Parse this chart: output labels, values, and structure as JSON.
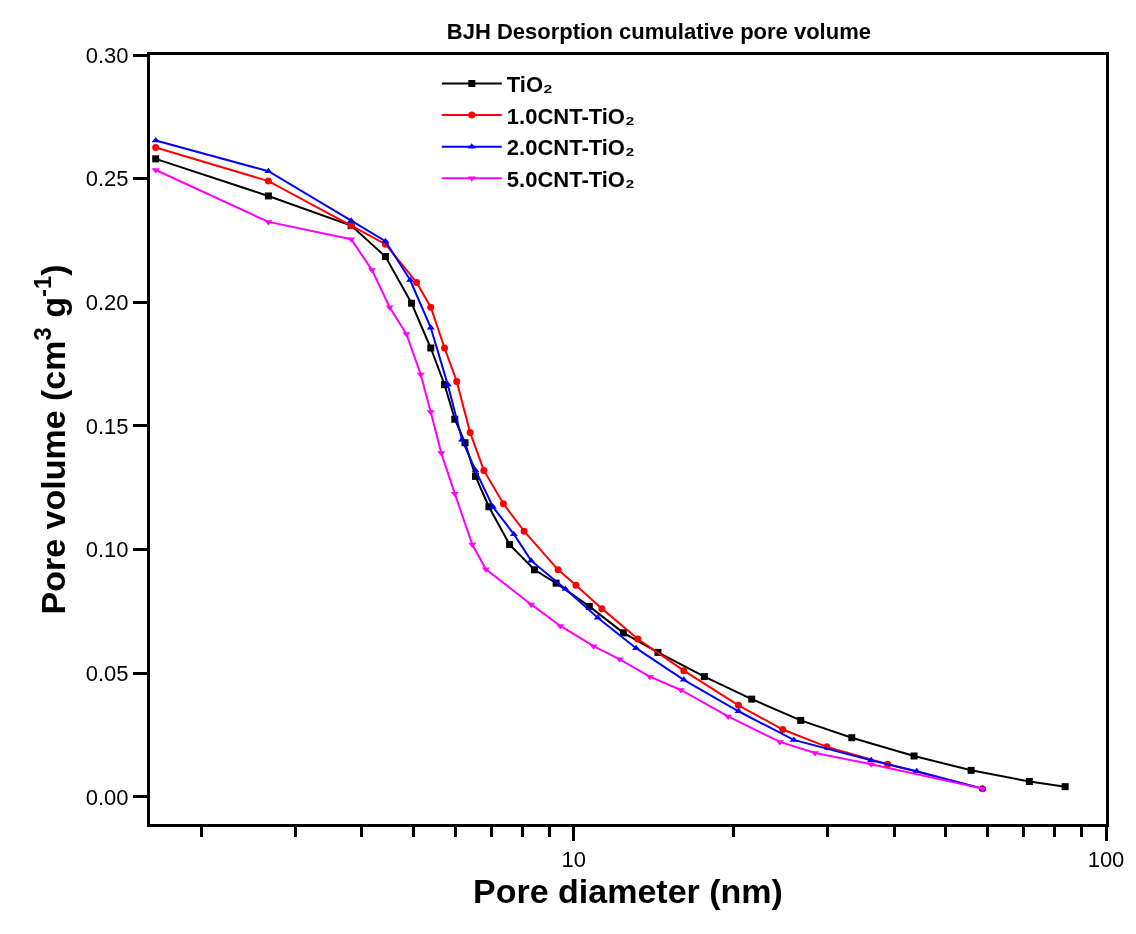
{
  "chart_data": {
    "type": "line",
    "title": "BJH Desorption cumulative pore volume",
    "xlabel": "Pore diameter (nm)",
    "ylabel": "Pore volume (cm$^{3}$ g$^{-1}$)",
    "log": "x",
    "legend": "top",
    "line_style": "solid",
    "xlim": [
      1.6,
      100
    ],
    "xticks": [
      {
        "value": 2,
        "label": null
      },
      {
        "value": 3,
        "label": null
      },
      {
        "value": 4,
        "label": null
      },
      {
        "value": 5,
        "label": null
      },
      {
        "value": 6,
        "label": null
      },
      {
        "value": 7,
        "label": null
      },
      {
        "value": 8,
        "label": null
      },
      {
        "value": 9,
        "label": null
      },
      10,
      {
        "value": 20,
        "label": null
      },
      {
        "value": 30,
        "label": null
      },
      {
        "value": 40,
        "label": null
      },
      {
        "value": 50,
        "label": null
      },
      {
        "value": 60,
        "label": null
      },
      {
        "value": 70,
        "label": null
      },
      {
        "value": 80,
        "label": null
      },
      {
        "value": 90,
        "label": null
      },
      100
    ],
    "ylim": [
      -0.011,
      0.3
    ],
    "yticks": [
      {
        "value": 0,
        "label": "0.00"
      },
      {
        "value": 0.05,
        "label": "0.05"
      },
      {
        "value": 0.1,
        "label": "0.10"
      },
      {
        "value": 0.15,
        "label": "0.15"
      },
      {
        "value": 0.2,
        "label": "0.20"
      },
      {
        "value": 0.25,
        "label": "0.25"
      },
      {
        "value": 0.3,
        "label": "0.30"
      }
    ],
    "series": [
      {
        "name": "TiO₂",
        "color": "#000000",
        "marker": "square",
        "x": [
          1.64,
          2.67,
          3.82,
          4.43,
          4.96,
          5.39,
          5.72,
          5.98,
          6.25,
          6.54,
          6.93,
          7.58,
          8.44,
          9.27,
          10.7,
          12.4,
          14.4,
          17.6,
          21.6,
          26.7,
          33.3,
          43.6,
          55.8,
          71.8,
          83.8
        ],
        "values": [
          0.258,
          0.243,
          0.231,
          0.2185,
          0.1996,
          0.1815,
          0.1667,
          0.1527,
          0.1432,
          0.1296,
          0.1173,
          0.102,
          0.0918,
          0.0864,
          0.077,
          0.0663,
          0.0584,
          0.0486,
          0.0395,
          0.0309,
          0.0239,
          0.0165,
          0.0107,
          0.0062,
          0.0041
        ]
      },
      {
        "name": "1.0CNT-TiO₂",
        "color": "#ff0000",
        "marker": "circle",
        "x": [
          1.64,
          2.67,
          3.82,
          4.43,
          5.07,
          5.39,
          5.72,
          6.03,
          6.39,
          6.78,
          7.38,
          8.07,
          9.35,
          10.1,
          11.3,
          13.2,
          16.1,
          20.4,
          24.7,
          29.9,
          38.9,
          58.6
        ],
        "values": [
          0.2626,
          0.249,
          0.231,
          0.2235,
          0.208,
          0.198,
          0.1815,
          0.168,
          0.1473,
          0.132,
          0.1185,
          0.1074,
          0.0918,
          0.0856,
          0.0761,
          0.0638,
          0.051,
          0.037,
          0.0272,
          0.0202,
          0.0132,
          0.0033
        ]
      },
      {
        "name": "2.0CNT-TiO₂",
        "color": "#0000ff",
        "marker": "triangle",
        "x": [
          1.64,
          2.67,
          3.82,
          4.43,
          4.93,
          5.39,
          5.8,
          6.17,
          6.54,
          7.05,
          7.72,
          8.32,
          9.65,
          11.1,
          13.1,
          16.1,
          20.4,
          25.9,
          36.2,
          44.1,
          58.6
        ],
        "values": [
          0.2654,
          0.253,
          0.233,
          0.2247,
          0.209,
          0.1897,
          0.1667,
          0.1444,
          0.132,
          0.1173,
          0.1062,
          0.0955,
          0.084,
          0.0724,
          0.0601,
          0.0473,
          0.0346,
          0.023,
          0.0148,
          0.0103,
          0.0033
        ]
      },
      {
        "name": "5.0CNT-TiO₂",
        "color": "#ff00ff",
        "marker": "triangle-down",
        "x": [
          1.64,
          2.67,
          3.82,
          4.18,
          4.51,
          4.85,
          5.16,
          5.39,
          5.64,
          5.98,
          6.45,
          6.84,
          8.32,
          9.44,
          10.9,
          12.2,
          13.9,
          15.9,
          19.5,
          24.4,
          28.4,
          36.2,
          58.6
        ],
        "values": [
          0.2535,
          0.2325,
          0.2255,
          0.213,
          0.198,
          0.1872,
          0.1708,
          0.1556,
          0.139,
          0.1226,
          0.102,
          0.092,
          0.0778,
          0.0691,
          0.0609,
          0.0556,
          0.0486,
          0.0432,
          0.0325,
          0.0222,
          0.0177,
          0.0132,
          0.0033
        ]
      }
    ]
  }
}
